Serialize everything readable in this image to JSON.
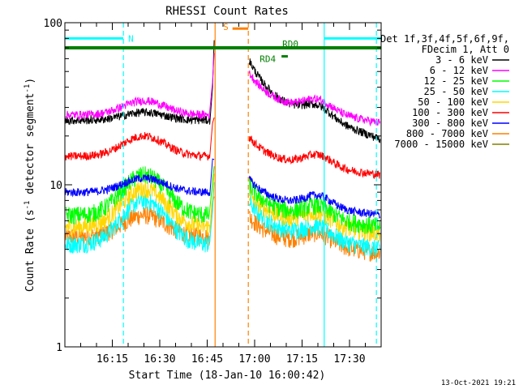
{
  "chart_data": {
    "type": "line",
    "title": "RHESSI Count Rates",
    "xlabel": "Start Time (18-Jan-10 16:00:42)",
    "ylabel": "Count Rate (s",
    "ylabel_sup": "-1",
    "ylabel_mid": " detector segment",
    "ylabel_sup2": "-1",
    "ylabel_end": ")",
    "yscale": "log",
    "ylim": [
      1,
      100
    ],
    "xlim_minutes": [
      0,
      100
    ],
    "xticks": [
      {
        "label": "16:15",
        "minutes": 15
      },
      {
        "label": "16:30",
        "minutes": 30
      },
      {
        "label": "16:45",
        "minutes": 45
      },
      {
        "label": "17:00",
        "minutes": 60
      },
      {
        "label": "17:15",
        "minutes": 75
      },
      {
        "label": "17:30",
        "minutes": 90
      }
    ],
    "yticks": [
      {
        "label": "1",
        "value": 1
      },
      {
        "label": "10",
        "value": 10
      },
      {
        "label": "100",
        "value": 100
      }
    ],
    "legend_header": [
      "Det 1f,3f,4f,5f,6f,9f,",
      "FDecim 1, Att 0"
    ],
    "legend_placement": "right",
    "timestamp": "13-Oct-2021 19:21",
    "series": [
      {
        "name": "3 - 6 keV",
        "color": "#000000",
        "pre": 25,
        "hump": 28,
        "post_peak": 60,
        "end": 19
      },
      {
        "name": "6 - 12 keV",
        "color": "#ff00ff",
        "pre": 27,
        "hump": 33,
        "post_peak": 50,
        "end": 24
      },
      {
        "name": "12 - 25 keV",
        "color": "#00ff00",
        "pre": 6.5,
        "hump": 11.5,
        "post_peak": 10,
        "end": 5.5
      },
      {
        "name": "25 - 50 keV",
        "color": "#00ffff",
        "pre": 4.3,
        "hump": 8,
        "post_peak": 8,
        "end": 4
      },
      {
        "name": "50 - 100 keV",
        "color": "#ffd700",
        "pre": 5.5,
        "hump": 9.5,
        "post_peak": 9,
        "end": 5
      },
      {
        "name": "100 - 300 keV",
        "color": "#ff0000",
        "pre": 15,
        "hump": 20,
        "post_peak": 20,
        "end": 11.5
      },
      {
        "name": "300 - 800 keV",
        "color": "#0000ff",
        "pre": 9,
        "hump": 11,
        "post_peak": 11,
        "end": 6.5
      },
      {
        "name": "800 - 7000 keV",
        "color": "#ff8000",
        "pre": 4.8,
        "hump": 6.5,
        "post_peak": 6.5,
        "end": 3.8
      },
      {
        "name": "7000 - 15000 keV",
        "color": "#808000",
        "pre": 0,
        "hump": 0,
        "post_peak": 0,
        "end": 0
      }
    ],
    "flags": [
      {
        "label": "N",
        "color": "#00ffff",
        "value": 80,
        "segments": [
          [
            0,
            18.5
          ],
          [
            82,
            100
          ]
        ]
      },
      {
        "label": "S",
        "color": "#ff8000",
        "value": 92,
        "segments": [
          [
            53,
            58
          ]
        ]
      },
      {
        "label": "RD0",
        "color": "#008000",
        "value": 70,
        "segments": [
          [
            0,
            100
          ]
        ]
      },
      {
        "label": "RD4",
        "color": "#008000",
        "value": 62,
        "segments": [
          [
            68.5,
            70.5
          ]
        ]
      }
    ],
    "vlines": [
      {
        "minutes": 18.5,
        "color": "#00ffff",
        "style": "dashed"
      },
      {
        "minutes": 82,
        "color": "#00ffff",
        "style": "solid"
      },
      {
        "minutes": 98.5,
        "color": "#00ffff",
        "style": "dashed"
      },
      {
        "minutes": 47.5,
        "color": "#ff8000",
        "style": "solid"
      },
      {
        "minutes": 58,
        "color": "#ff8000",
        "style": "dashed"
      }
    ],
    "saa_gap_minutes": [
      47.5,
      58
    ]
  }
}
